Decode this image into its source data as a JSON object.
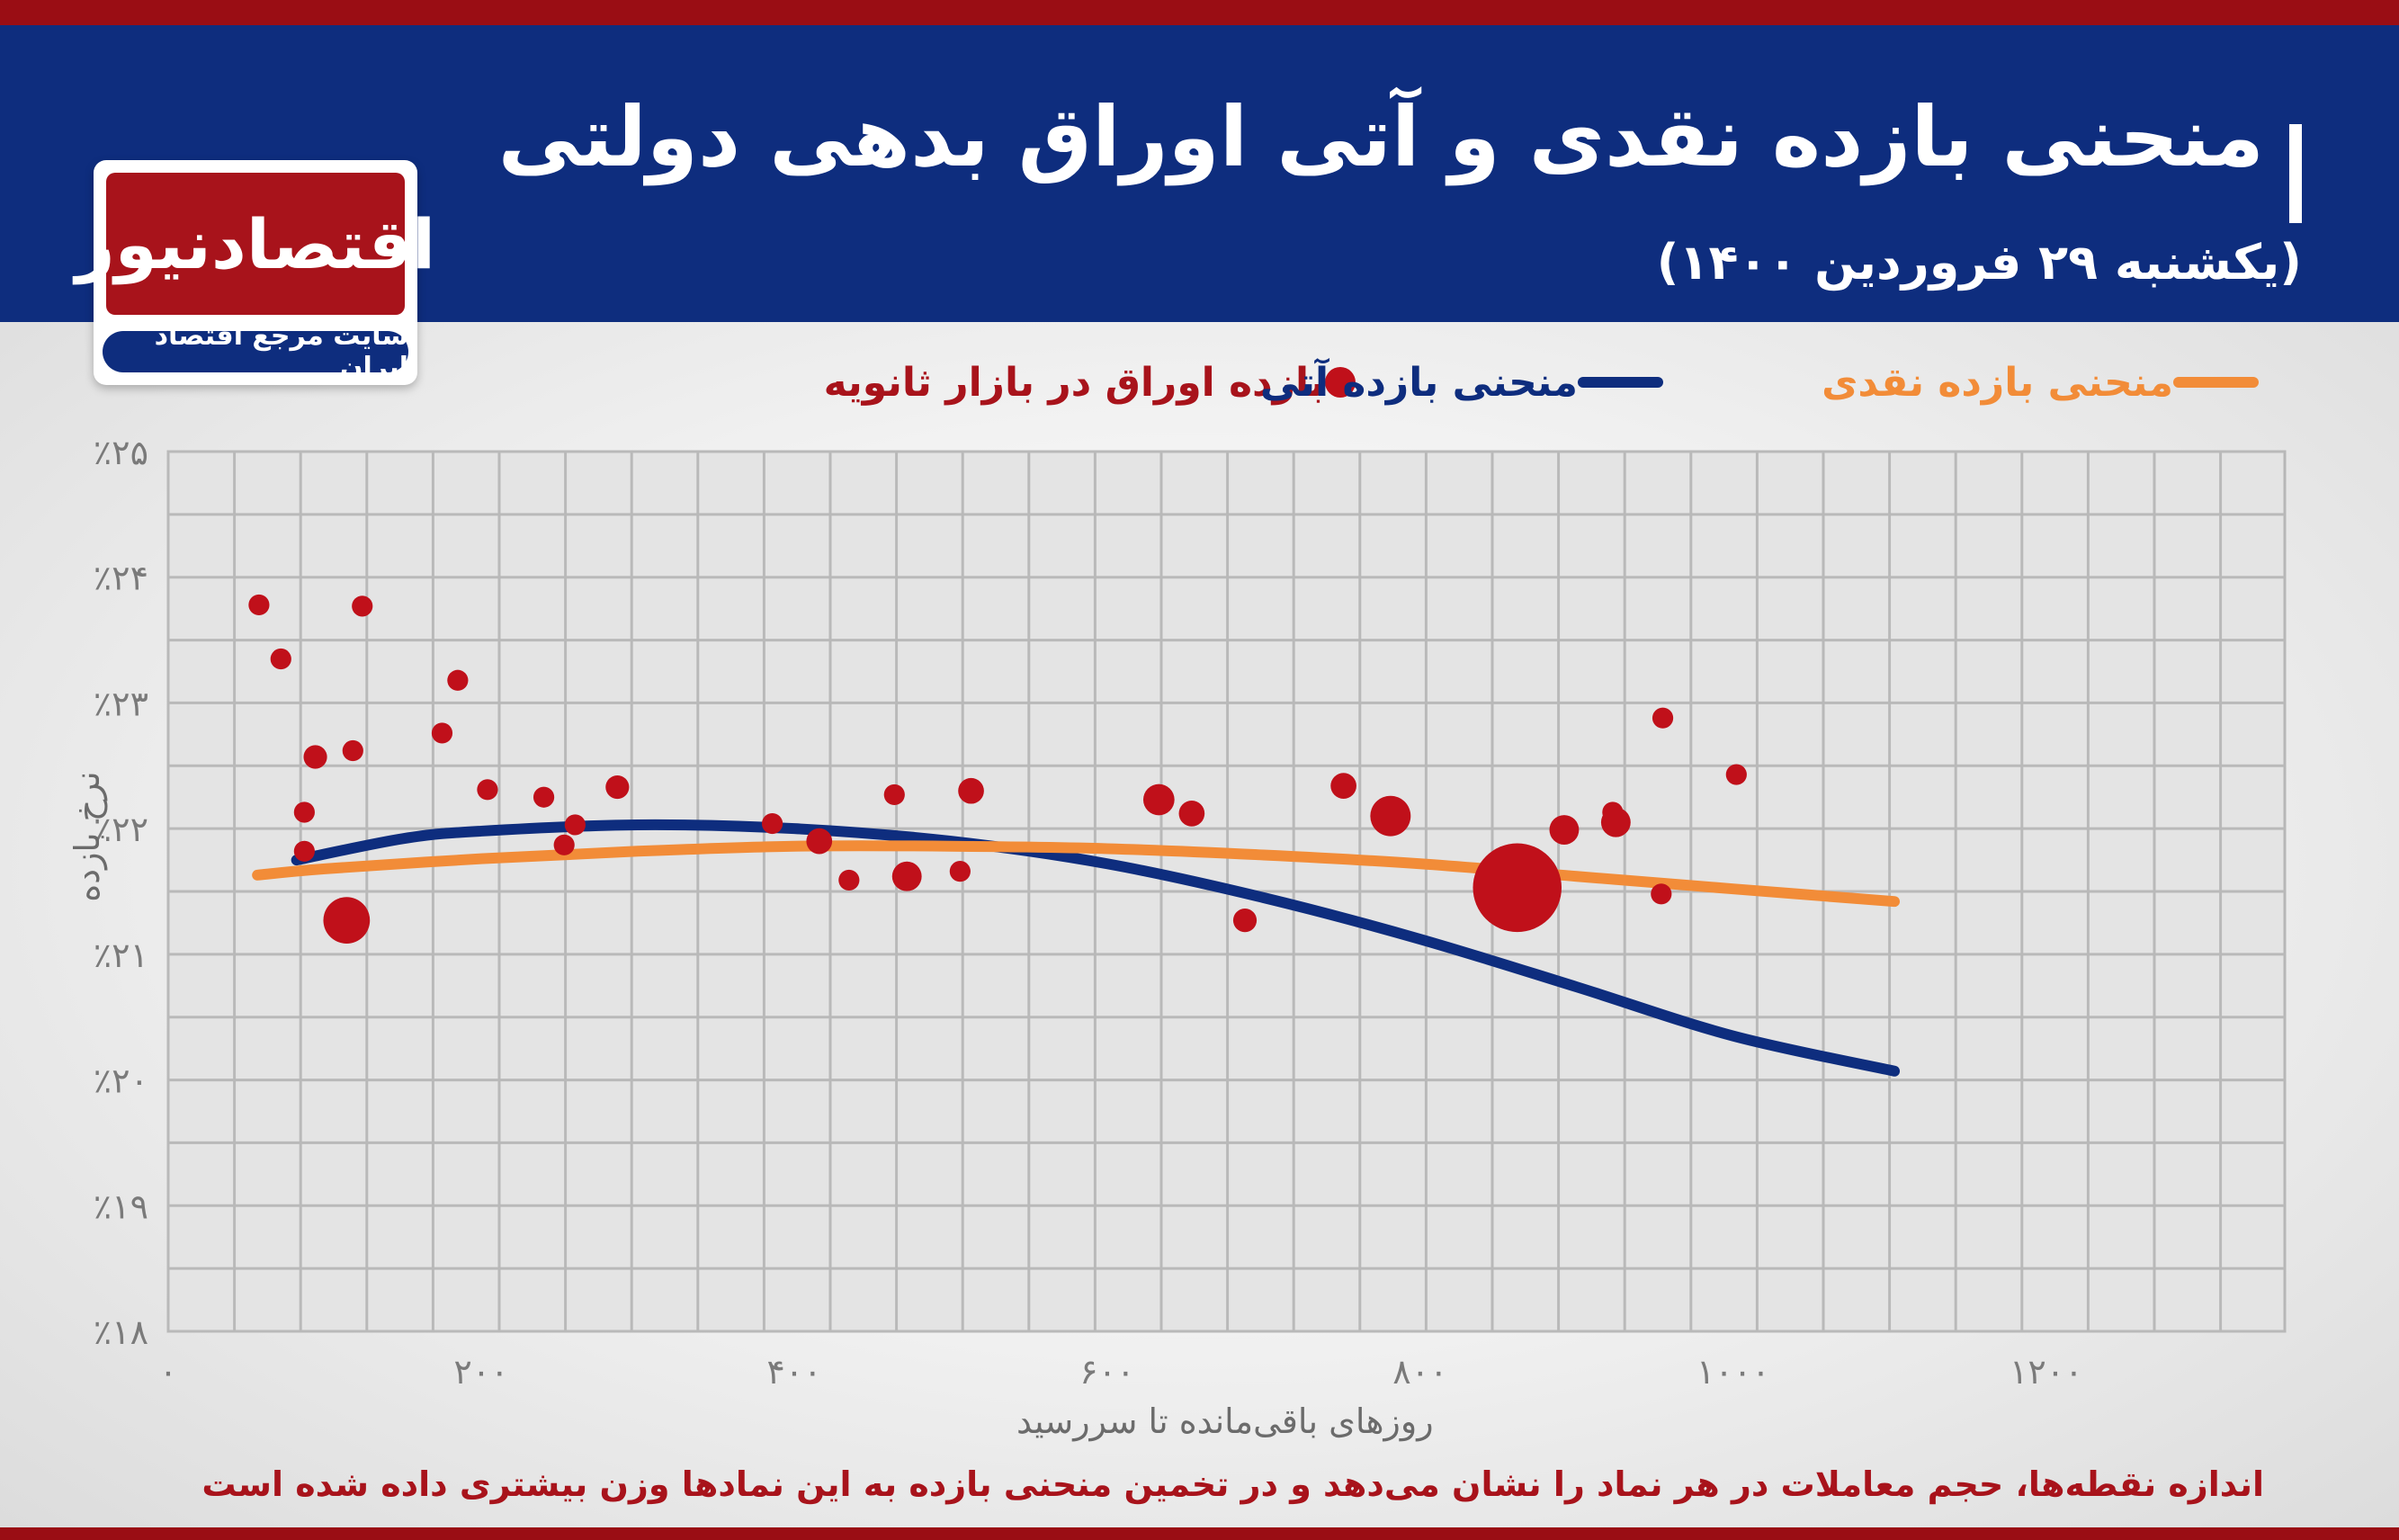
{
  "header": {
    "title": "منحنی بازده نقدی و آتی اوراق بدهی دولتی",
    "subtitle": "(یکشنبه ۲۹ فروردین ۱۴۰۰)"
  },
  "logo": {
    "name": "اقتصادنیوز",
    "tagline": "سایت مرجع اقتصاد ایران"
  },
  "legend": {
    "spot_label": "منحنی بازده نقدی",
    "futures_label": "منحنی بازده آتی",
    "bonds_label": "بازده اوراق در بازار ثانویه"
  },
  "footnote": "اندازه نقطه‌ها، حجم معاملات در هر نماد را نشان می‌دهد و در تخمین منحنی بازده به این نمادها وزن بیشتری داده شده است",
  "colors": {
    "spot": "#f28c38",
    "futures": "#0e2d7e",
    "bonds": "#c0101a",
    "header": "#0e2d7e",
    "brand_red": "#9a0d14"
  },
  "chart_data": {
    "type": "scatter",
    "xlabel": "روزهای باقی‌مانده تا سررسید",
    "ylabel": "نرخ بازده",
    "xlim": [
      0,
      1280
    ],
    "ylim": [
      18,
      25
    ],
    "x_ticks": [
      0,
      200,
      400,
      600,
      800,
      1000,
      1200
    ],
    "x_tick_labels": [
      "۰",
      "۲۰۰",
      "۴۰۰",
      "۶۰۰",
      "۸۰۰",
      "۱۰۰۰",
      "۱۲۰۰"
    ],
    "y_ticks": [
      18,
      19,
      20,
      21,
      22,
      23,
      24,
      25
    ],
    "y_tick_labels": [
      "٪۱۸",
      "٪۱۹",
      "٪۲۰",
      "٪۲۱",
      "٪۲۲",
      "٪۲۳",
      "٪۲۴",
      "٪۲۵"
    ],
    "grid": true,
    "legend_position": "top",
    "series": [
      {
        "name": "منحنی بازده نقدی",
        "kind": "line",
        "points": [
          [
            57,
            21.63
          ],
          [
            100,
            21.68
          ],
          [
            200,
            21.76
          ],
          [
            300,
            21.82
          ],
          [
            400,
            21.86
          ],
          [
            500,
            21.86
          ],
          [
            600,
            21.84
          ],
          [
            700,
            21.79
          ],
          [
            800,
            21.72
          ],
          [
            900,
            21.62
          ],
          [
            1000,
            21.52
          ],
          [
            1103,
            21.42
          ]
        ]
      },
      {
        "name": "منحنی بازده آتی",
        "kind": "line",
        "points": [
          [
            82,
            21.75
          ],
          [
            150,
            21.92
          ],
          [
            200,
            21.98
          ],
          [
            300,
            22.03
          ],
          [
            400,
            22.0
          ],
          [
            500,
            21.9
          ],
          [
            600,
            21.72
          ],
          [
            700,
            21.45
          ],
          [
            800,
            21.12
          ],
          [
            900,
            20.74
          ],
          [
            1000,
            20.35
          ],
          [
            1103,
            20.07
          ]
        ]
      },
      {
        "name": "بازده اوراق در بازار ثانویه",
        "kind": "scatter",
        "points": [
          {
            "x": 58,
            "y": 23.78,
            "size": 1
          },
          {
            "x": 72,
            "y": 23.35,
            "size": 1
          },
          {
            "x": 124,
            "y": 23.77,
            "size": 1
          },
          {
            "x": 118,
            "y": 22.62,
            "size": 1
          },
          {
            "x": 94,
            "y": 22.57,
            "size": 1.5
          },
          {
            "x": 87,
            "y": 22.13,
            "size": 1
          },
          {
            "x": 87,
            "y": 21.82,
            "size": 1
          },
          {
            "x": 114,
            "y": 21.27,
            "size": 10
          },
          {
            "x": 185,
            "y": 23.18,
            "size": 1
          },
          {
            "x": 175,
            "y": 22.76,
            "size": 1
          },
          {
            "x": 204,
            "y": 22.31,
            "size": 1
          },
          {
            "x": 240,
            "y": 22.25,
            "size": 1
          },
          {
            "x": 253,
            "y": 21.87,
            "size": 1
          },
          {
            "x": 260,
            "y": 22.03,
            "size": 1
          },
          {
            "x": 287,
            "y": 22.33,
            "size": 1.5
          },
          {
            "x": 386,
            "y": 22.04,
            "size": 1
          },
          {
            "x": 416,
            "y": 21.9,
            "size": 2
          },
          {
            "x": 435,
            "y": 21.59,
            "size": 1
          },
          {
            "x": 464,
            "y": 22.27,
            "size": 1
          },
          {
            "x": 472,
            "y": 21.62,
            "size": 3
          },
          {
            "x": 506,
            "y": 21.66,
            "size": 1
          },
          {
            "x": 513,
            "y": 22.3,
            "size": 2
          },
          {
            "x": 633,
            "y": 22.23,
            "size": 3.5
          },
          {
            "x": 654,
            "y": 22.12,
            "size": 2
          },
          {
            "x": 688,
            "y": 21.27,
            "size": 1.5
          },
          {
            "x": 751,
            "y": 22.34,
            "size": 2
          },
          {
            "x": 781,
            "y": 22.1,
            "size": 7
          },
          {
            "x": 862,
            "y": 21.53,
            "size": 45
          },
          {
            "x": 892,
            "y": 21.99,
            "size": 3
          },
          {
            "x": 923,
            "y": 22.13,
            "size": 1
          },
          {
            "x": 925,
            "y": 22.05,
            "size": 3
          },
          {
            "x": 955,
            "y": 22.88,
            "size": 1
          },
          {
            "x": 954,
            "y": 21.48,
            "size": 1
          },
          {
            "x": 1002,
            "y": 22.43,
            "size": 1
          }
        ]
      }
    ]
  }
}
